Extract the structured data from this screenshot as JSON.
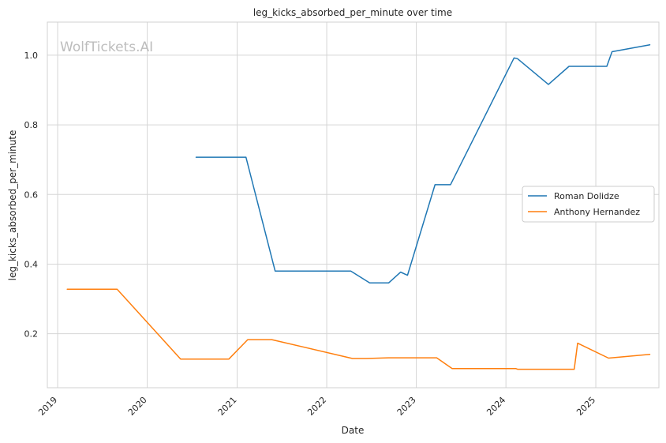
{
  "chart_data": {
    "type": "line",
    "title": "leg_kicks_absorbed_per_minute over time",
    "xlabel": "Date",
    "ylabel": "leg_kicks_absorbed_per_minute",
    "watermark": "WolfTickets.AI",
    "x_ticks": [
      "2019",
      "2020",
      "2021",
      "2022",
      "2023",
      "2024",
      "2025"
    ],
    "y_ticks": [
      "0.2",
      "0.4",
      "0.6",
      "0.8",
      "1.0"
    ],
    "xlim": [
      "2018-11-20",
      "2025-09-15"
    ],
    "ylim": [
      0.045,
      1.095
    ],
    "grid": true,
    "legend_position": "right",
    "series": [
      {
        "name": "Roman Dolidze",
        "color": "#1f77b4",
        "points": [
          [
            "2020-07-18",
            0.707
          ],
          [
            "2021-02-06",
            0.707
          ],
          [
            "2021-03-06",
            0.63
          ],
          [
            "2021-06-05",
            0.38
          ],
          [
            "2022-04-09",
            0.38
          ],
          [
            "2022-06-25",
            0.346
          ],
          [
            "2022-09-10",
            0.346
          ],
          [
            "2022-10-29",
            0.377
          ],
          [
            "2022-11-26",
            0.368
          ],
          [
            "2023-03-18",
            0.628
          ],
          [
            "2023-05-20",
            0.628
          ],
          [
            "2024-02-03",
            0.992
          ],
          [
            "2024-02-17",
            0.99
          ],
          [
            "2024-06-22",
            0.916
          ],
          [
            "2024-09-14",
            0.968
          ],
          [
            "2025-02-15",
            0.968
          ],
          [
            "2025-03-08",
            1.01
          ],
          [
            "2025-08-09",
            1.03
          ]
        ]
      },
      {
        "name": "Anthony Hernandez",
        "color": "#ff7f0e",
        "points": [
          [
            "2019-02-09",
            0.328
          ],
          [
            "2019-08-31",
            0.328
          ],
          [
            "2020-05-16",
            0.127
          ],
          [
            "2020-11-28",
            0.127
          ],
          [
            "2021-02-13",
            0.183
          ],
          [
            "2021-05-22",
            0.183
          ],
          [
            "2022-04-16",
            0.129
          ],
          [
            "2022-06-11",
            0.129
          ],
          [
            "2022-09-10",
            0.131
          ],
          [
            "2023-03-25",
            0.131
          ],
          [
            "2023-05-27",
            0.1
          ],
          [
            "2024-02-10",
            0.1
          ],
          [
            "2024-02-17",
            0.098
          ],
          [
            "2024-10-05",
            0.098
          ],
          [
            "2024-10-19",
            0.173
          ],
          [
            "2025-02-22",
            0.13
          ],
          [
            "2025-08-09",
            0.141
          ]
        ]
      }
    ]
  }
}
